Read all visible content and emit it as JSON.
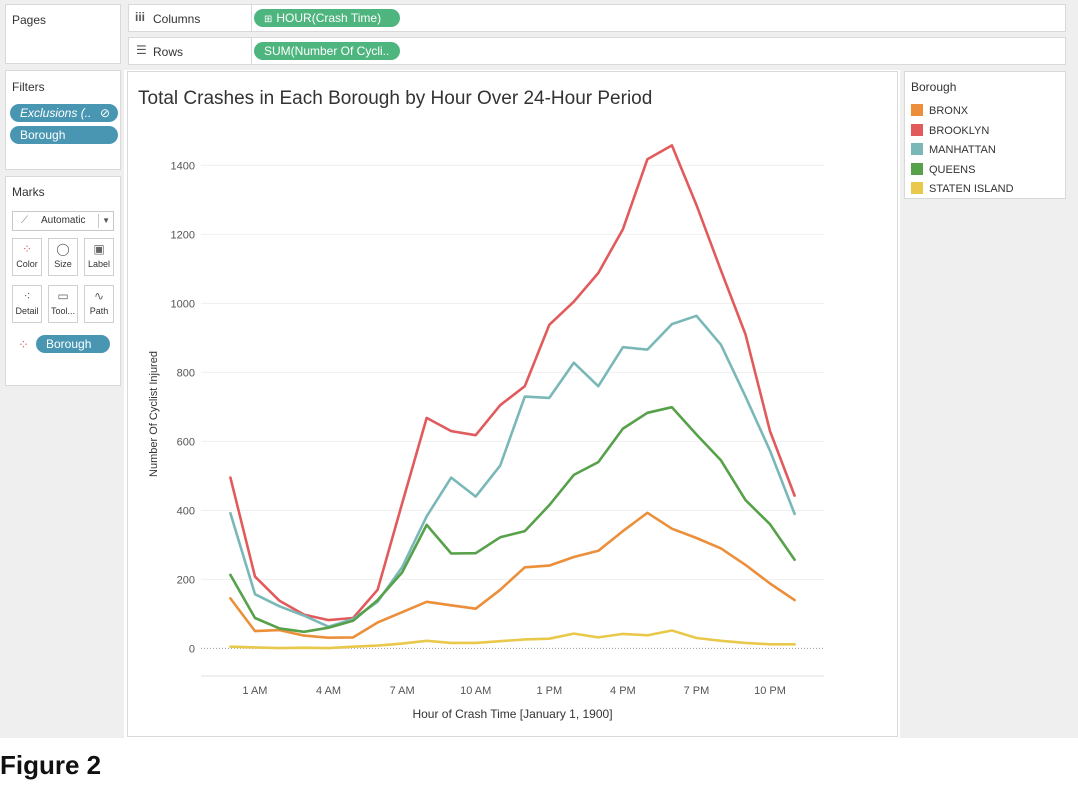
{
  "shelves": {
    "pages_label": "Pages",
    "columns_label": "Columns",
    "columns_pill": "HOUR(Crash Time)",
    "rows_label": "Rows",
    "rows_pill": "SUM(Number Of Cycli.."
  },
  "filters": {
    "title": "Filters",
    "items": [
      "Exclusions (..",
      "Borough"
    ]
  },
  "marks": {
    "title": "Marks",
    "type": "Automatic",
    "buttons": [
      "Color",
      "Size",
      "Label",
      "Detail",
      "Tool...",
      "Path"
    ],
    "pill": "Borough"
  },
  "legend": {
    "title": "Borough"
  },
  "caption": "Figure 2",
  "colors": {
    "BRONX": "#ec8f3a",
    "BROOKLYN": "#e25b5c",
    "MANHATTAN": "#7ab8b8",
    "QUEENS": "#57a14a",
    "STATEN ISLAND": "#e9c94b",
    "pill_green": "#4fb57f",
    "pill_blue": "#4996b2"
  },
  "chart_data": {
    "type": "line",
    "title": "Total Crashes in Each Borough by Hour Over 24-Hour Period",
    "xlabel": "Hour of Crash Time [January 1, 1900]",
    "ylabel": "Number Of Cyclist Injured",
    "x": [
      0,
      1,
      2,
      3,
      4,
      5,
      6,
      7,
      8,
      9,
      10,
      11,
      12,
      13,
      14,
      15,
      16,
      17,
      18,
      19,
      20,
      21,
      22,
      23
    ],
    "xticks": [
      {
        "x": 1,
        "label": "1 AM"
      },
      {
        "x": 4,
        "label": "4 AM"
      },
      {
        "x": 7,
        "label": "7 AM"
      },
      {
        "x": 10,
        "label": "10 AM"
      },
      {
        "x": 13,
        "label": "1 PM"
      },
      {
        "x": 16,
        "label": "4 PM"
      },
      {
        "x": 19,
        "label": "7 PM"
      },
      {
        "x": 22,
        "label": "10 PM"
      }
    ],
    "yticks": [
      0,
      200,
      400,
      600,
      800,
      1000,
      1200,
      1400
    ],
    "ylim": [
      -80,
      1520
    ],
    "xlim": [
      -1.2,
      24.2
    ],
    "grid": true,
    "legend_position": "right",
    "series": [
      {
        "name": "BRONX",
        "values": [
          145,
          50,
          53,
          37,
          31,
          32,
          75,
          105,
          135,
          125,
          115,
          170,
          235,
          240,
          265,
          283,
          340,
          393,
          347,
          320,
          290,
          242,
          188,
          140
        ]
      },
      {
        "name": "BROOKLYN",
        "values": [
          495,
          208,
          138,
          98,
          82,
          88,
          170,
          420,
          668,
          630,
          618,
          705,
          760,
          938,
          1005,
          1088,
          1215,
          1418,
          1458,
          1285,
          1095,
          910,
          630,
          443
        ]
      },
      {
        "name": "MANHATTAN",
        "values": [
          392,
          157,
          122,
          95,
          63,
          85,
          135,
          235,
          383,
          495,
          440,
          530,
          730,
          726,
          828,
          760,
          873,
          866,
          940,
          964,
          880,
          730,
          573,
          390
        ]
      },
      {
        "name": "QUEENS",
        "values": [
          213,
          88,
          58,
          48,
          60,
          80,
          140,
          220,
          358,
          275,
          276,
          322,
          340,
          415,
          503,
          540,
          637,
          683,
          699,
          620,
          545,
          430,
          360,
          257
        ]
      },
      {
        "name": "STATEN ISLAND",
        "values": [
          5,
          3,
          1,
          2,
          1,
          5,
          8,
          14,
          22,
          16,
          16,
          21,
          26,
          28,
          43,
          32,
          42,
          38,
          52,
          30,
          22,
          16,
          12,
          12
        ]
      }
    ]
  }
}
